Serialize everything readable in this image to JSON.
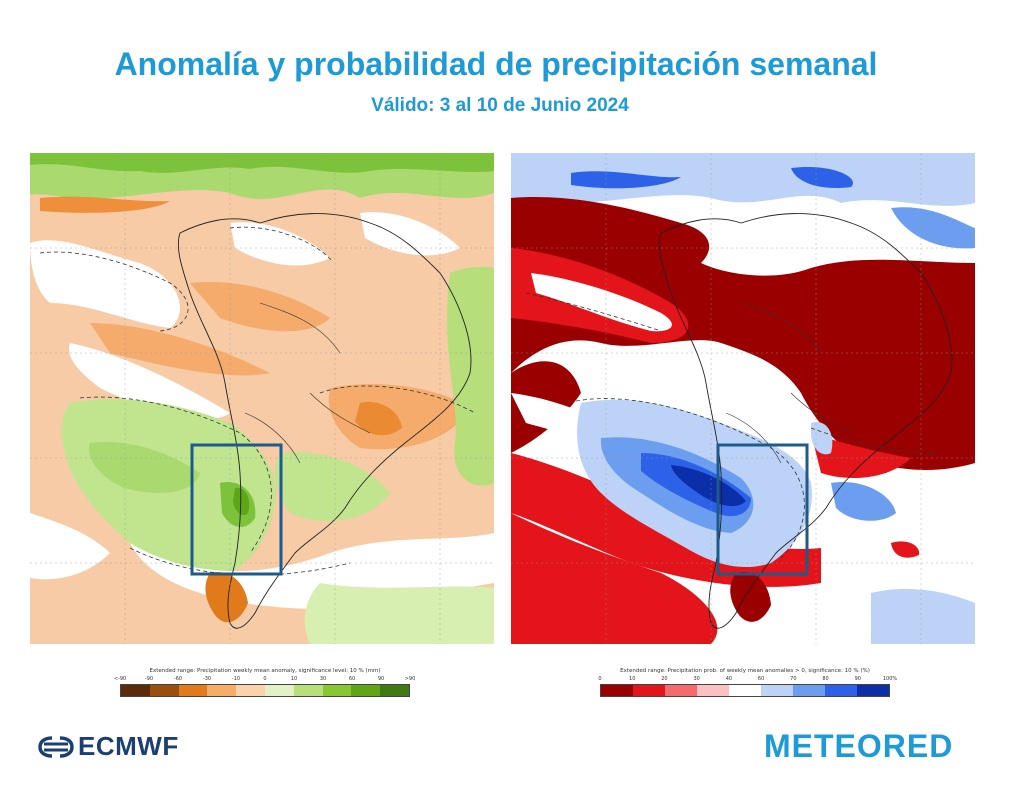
{
  "header": {
    "title": "Anomalía y probabilidad de precipitación semanal",
    "subtitle": "Válido: 3 al 10 de Junio 2024"
  },
  "left_map": {
    "legend_caption": "Extended range: Precipitation weekly mean anomaly, significance level: 10 % (mm)",
    "legend_ticks": [
      "<-90",
      "-90",
      "-60",
      "-30",
      "-10",
      "0",
      "10",
      "30",
      "60",
      "90",
      ">90"
    ],
    "legend_colors": [
      "#5b2c0a",
      "#9a4f0f",
      "#e07a1a",
      "#f6ad67",
      "#fbd2a9",
      "#e2f2c4",
      "#b8e07a",
      "#86c732",
      "#5ea615",
      "#3f7a12"
    ]
  },
  "right_map": {
    "legend_caption": "Extended range: Precipitation prob. of weekly mean anomalies > 0, significance: 10 % (%)",
    "legend_ticks": [
      "0",
      "10",
      "20",
      "30",
      "40",
      "60",
      "70",
      "80",
      "90",
      "100%"
    ],
    "legend_colors": [
      "#9b0000",
      "#e3141a",
      "#f56a6a",
      "#fbc0c0",
      "#ffffff",
      "#bcd3f7",
      "#6c9ef0",
      "#2d62e8",
      "#0b2fa8"
    ]
  },
  "logos": {
    "ecmwf": "ECMWF",
    "meteored": "METEORED"
  },
  "colors": {
    "title": "#1e9ad6",
    "highlight_box": "#1e5a8c",
    "ocean_dry": "#f6c59c",
    "ocean_wet": "#b6de7a"
  }
}
